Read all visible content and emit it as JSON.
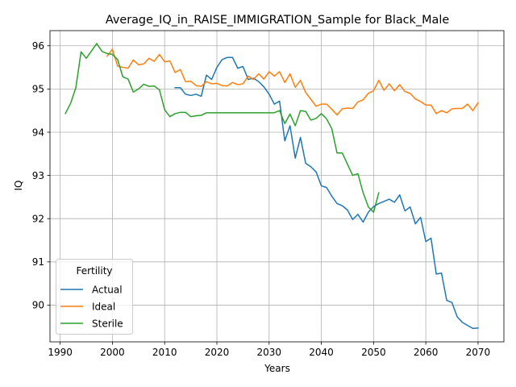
{
  "chart_data": {
    "type": "line",
    "title": "Average_IQ_in_RAISE_IMMIGRATION_Sample for Black_Male",
    "xlabel": "Years",
    "ylabel": "IQ",
    "xlim": [
      1988.05,
      2074.95
    ],
    "ylim": [
      89.15,
      96.35
    ],
    "xticks": [
      1990,
      2000,
      2010,
      2020,
      2030,
      2040,
      2050,
      2060,
      2070
    ],
    "yticks": [
      90,
      91,
      92,
      93,
      94,
      95,
      96
    ],
    "grid": true,
    "legend": {
      "title": "Fertility",
      "position": "lower-left"
    },
    "colors": {
      "Actual": "#1f77b4",
      "Ideal": "#ff7f0e",
      "Sterile": "#2ca02c"
    },
    "series": [
      {
        "name": "Actual",
        "x": [
          2012,
          2013,
          2014,
          2015,
          2016,
          2017,
          2018,
          2019,
          2020,
          2021,
          2022,
          2023,
          2024,
          2025,
          2026,
          2027,
          2028,
          2029,
          2030,
          2031,
          2032,
          2033,
          2034,
          2035,
          2036,
          2037,
          2038,
          2039,
          2040,
          2041,
          2042,
          2043,
          2044,
          2045,
          2046,
          2047,
          2048,
          2049,
          2050,
          2051,
          2052,
          2053,
          2054,
          2055,
          2056,
          2057,
          2058,
          2059,
          2060,
          2061,
          2062,
          2063,
          2064,
          2065,
          2066,
          2067,
          2068,
          2069,
          2070
        ],
        "y": [
          95.03,
          95.03,
          94.88,
          94.85,
          94.88,
          94.83,
          95.32,
          95.22,
          95.5,
          95.68,
          95.73,
          95.73,
          95.48,
          95.52,
          95.22,
          95.25,
          95.17,
          95.05,
          94.88,
          94.65,
          94.72,
          93.8,
          94.15,
          93.4,
          93.88,
          93.28,
          93.2,
          93.08,
          92.76,
          92.72,
          92.52,
          92.35,
          92.3,
          92.2,
          91.98,
          92.1,
          91.92,
          92.15,
          92.28,
          92.35,
          92.4,
          92.45,
          92.38,
          92.55,
          92.18,
          92.27,
          91.88,
          92.03,
          91.47,
          91.55,
          90.72,
          90.74,
          90.11,
          90.06,
          89.73,
          89.6,
          89.53,
          89.46,
          89.47
        ]
      },
      {
        "name": "Ideal",
        "x": [
          1999,
          2000,
          2001,
          2002,
          2003,
          2004,
          2005,
          2006,
          2007,
          2008,
          2009,
          2010,
          2011,
          2012,
          2013,
          2014,
          2015,
          2016,
          2017,
          2018,
          2019,
          2020,
          2021,
          2022,
          2023,
          2024,
          2025,
          2026,
          2027,
          2028,
          2029,
          2030,
          2031,
          2032,
          2033,
          2034,
          2035,
          2036,
          2037,
          2038,
          2039,
          2040,
          2041,
          2042,
          2043,
          2044,
          2045,
          2046,
          2047,
          2048,
          2049,
          2050,
          2051,
          2052,
          2053,
          2054,
          2055,
          2056,
          2057,
          2058,
          2059,
          2060,
          2061,
          2062,
          2063,
          2064,
          2065,
          2066,
          2067,
          2068,
          2069,
          2070
        ],
        "y": [
          95.76,
          95.92,
          95.53,
          95.5,
          95.48,
          95.67,
          95.56,
          95.58,
          95.71,
          95.64,
          95.8,
          95.63,
          95.65,
          95.38,
          95.45,
          95.17,
          95.18,
          95.08,
          95.06,
          95.17,
          95.12,
          95.13,
          95.08,
          95.07,
          95.15,
          95.1,
          95.12,
          95.3,
          95.22,
          95.35,
          95.23,
          95.4,
          95.3,
          95.4,
          95.15,
          95.35,
          95.04,
          95.2,
          94.92,
          94.76,
          94.6,
          94.65,
          94.65,
          94.53,
          94.4,
          94.54,
          94.56,
          94.55,
          94.7,
          94.75,
          94.9,
          94.96,
          95.2,
          94.97,
          95.12,
          94.96,
          95.1,
          94.94,
          94.9,
          94.77,
          94.71,
          94.63,
          94.63,
          94.43,
          94.5,
          94.45,
          94.54,
          94.55,
          94.55,
          94.65,
          94.5,
          94.68
        ]
      },
      {
        "name": "Sterile",
        "x": [
          1991,
          1992,
          1993,
          1994,
          1995,
          1996,
          1997,
          1998,
          1999,
          2000,
          2001,
          2002,
          2003,
          2004,
          2005,
          2006,
          2007,
          2008,
          2009,
          2010,
          2011,
          2012,
          2013,
          2014,
          2015,
          2016,
          2017,
          2018,
          2019,
          2020,
          2021,
          2022,
          2023,
          2024,
          2025,
          2026,
          2027,
          2028,
          2029,
          2030,
          2031,
          2032,
          2033,
          2034,
          2035,
          2036,
          2037,
          2038,
          2039,
          2040,
          2041,
          2042,
          2043,
          2044,
          2045,
          2046,
          2047,
          2048,
          2049,
          2050,
          2051
        ],
        "y": [
          94.43,
          94.67,
          95.03,
          95.86,
          95.71,
          95.88,
          96.05,
          95.87,
          95.82,
          95.8,
          95.68,
          95.28,
          95.23,
          94.93,
          95.0,
          95.11,
          95.06,
          95.07,
          94.98,
          94.52,
          94.36,
          94.43,
          94.46,
          94.46,
          94.36,
          94.38,
          94.39,
          94.45,
          94.45,
          94.45,
          94.45,
          94.45,
          94.45,
          94.45,
          94.45,
          94.45,
          94.45,
          94.45,
          94.45,
          94.45,
          94.45,
          94.5,
          94.2,
          94.42,
          94.15,
          94.5,
          94.48,
          94.28,
          94.32,
          94.43,
          94.31,
          94.08,
          93.52,
          93.52,
          93.26,
          93.0,
          93.04,
          92.6,
          92.27,
          92.15,
          92.6
        ]
      }
    ]
  }
}
